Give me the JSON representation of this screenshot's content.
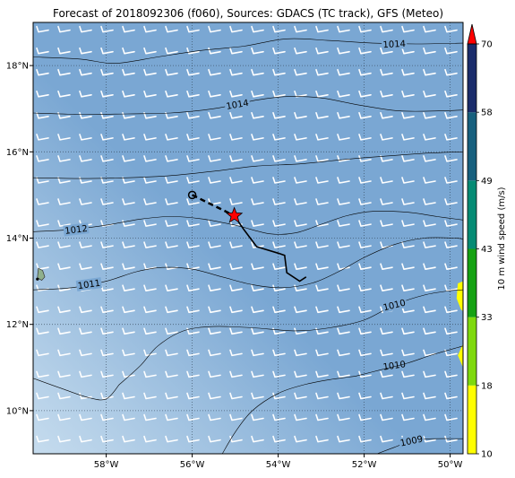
{
  "title": "Forecast of 2018092306 (f060), Sources: GDACS (TC track), GFS (Meteo)",
  "map": {
    "lat_ticks": [
      {
        "value": 18,
        "label": "18°N"
      },
      {
        "value": 16,
        "label": "16°N"
      },
      {
        "value": 14,
        "label": "14°N"
      },
      {
        "value": 12,
        "label": "12°N"
      },
      {
        "value": 10,
        "label": "10°N"
      }
    ],
    "lon_ticks": [
      {
        "value": -58,
        "label": "58°W"
      },
      {
        "value": -56,
        "label": "56°W"
      },
      {
        "value": -54,
        "label": "54°W"
      },
      {
        "value": -52,
        "label": "52°W"
      },
      {
        "value": -50,
        "label": "50°W"
      }
    ],
    "lon_range": [
      -59.7,
      -49.7
    ],
    "lat_range": [
      9.0,
      19.0
    ],
    "ocean_color": "#7aa7d3",
    "ocean_light_color": "#c6dcee",
    "grid": true,
    "isobars": [
      {
        "label": "1014",
        "label_lon": -51.3,
        "label_lat": 18.5,
        "label_angle": -3,
        "points": [
          [
            -59.7,
            18.2
          ],
          [
            -58.6,
            18.15
          ],
          [
            -57.8,
            18.05
          ],
          [
            -56.8,
            18.2
          ],
          [
            -55.8,
            18.35
          ],
          [
            -54.8,
            18.45
          ],
          [
            -53.8,
            18.62
          ],
          [
            -52.8,
            18.58
          ],
          [
            -51.8,
            18.52
          ],
          [
            -50.8,
            18.5
          ],
          [
            -49.7,
            18.52
          ]
        ]
      },
      {
        "label": "1014",
        "label_lon": -54.95,
        "label_lat": 17.1,
        "label_angle": -10,
        "points": [
          [
            -59.7,
            16.9
          ],
          [
            -58.6,
            16.87
          ],
          [
            -57.5,
            16.88
          ],
          [
            -56.5,
            16.9
          ],
          [
            -55.5,
            17.0
          ],
          [
            -54.5,
            17.2
          ],
          [
            -53.8,
            17.28
          ],
          [
            -53.0,
            17.25
          ],
          [
            -52.2,
            17.1
          ],
          [
            -51.2,
            16.95
          ],
          [
            -50.2,
            16.95
          ],
          [
            -49.7,
            16.97
          ]
        ]
      },
      {
        "label": "",
        "label_lon": 0,
        "label_lat": 0,
        "label_angle": 0,
        "points": [
          [
            -59.7,
            15.4
          ],
          [
            -58.6,
            15.38
          ],
          [
            -57.5,
            15.4
          ],
          [
            -56.5,
            15.45
          ],
          [
            -55.5,
            15.55
          ],
          [
            -54.5,
            15.67
          ],
          [
            -53.5,
            15.72
          ],
          [
            -52.5,
            15.82
          ],
          [
            -51.5,
            15.9
          ],
          [
            -50.5,
            15.97
          ],
          [
            -49.7,
            16.0
          ]
        ]
      },
      {
        "label": "1012",
        "label_lon": -58.7,
        "label_lat": 14.2,
        "label_angle": -7,
        "points": [
          [
            -59.7,
            14.15
          ],
          [
            -58.8,
            14.2
          ],
          [
            -58.0,
            14.3
          ],
          [
            -57.2,
            14.44
          ],
          [
            -56.5,
            14.5
          ],
          [
            -55.8,
            14.45
          ],
          [
            -55.0,
            14.3
          ],
          [
            -54.2,
            14.1
          ],
          [
            -53.6,
            14.12
          ],
          [
            -53.0,
            14.32
          ],
          [
            -52.4,
            14.52
          ],
          [
            -51.8,
            14.62
          ],
          [
            -51.0,
            14.6
          ],
          [
            -50.3,
            14.5
          ],
          [
            -49.7,
            14.42
          ]
        ]
      },
      {
        "label": "1011",
        "label_lon": -58.4,
        "label_lat": 12.93,
        "label_angle": -8,
        "points": [
          [
            -59.7,
            12.8
          ],
          [
            -58.8,
            12.85
          ],
          [
            -58.0,
            13.0
          ],
          [
            -57.3,
            13.22
          ],
          [
            -56.7,
            13.32
          ],
          [
            -56.0,
            13.28
          ],
          [
            -55.3,
            13.1
          ],
          [
            -54.6,
            12.92
          ],
          [
            -53.9,
            12.85
          ],
          [
            -53.2,
            12.96
          ],
          [
            -52.6,
            13.22
          ],
          [
            -52.0,
            13.55
          ],
          [
            -51.3,
            13.85
          ],
          [
            -50.6,
            14.0
          ],
          [
            -49.9,
            14.0
          ],
          [
            -49.7,
            13.98
          ]
        ]
      },
      {
        "label": "1010",
        "label_lon": -51.3,
        "label_lat": 12.45,
        "label_angle": -14,
        "points": [
          [
            -57.7,
            10.6
          ],
          [
            -57.2,
            11.05
          ],
          [
            -56.8,
            11.5
          ],
          [
            -56.2,
            11.85
          ],
          [
            -55.5,
            11.95
          ],
          [
            -54.6,
            11.92
          ],
          [
            -53.6,
            11.85
          ],
          [
            -52.8,
            11.92
          ],
          [
            -52.0,
            12.1
          ],
          [
            -51.3,
            12.45
          ],
          [
            -50.6,
            12.68
          ],
          [
            -50.0,
            12.78
          ],
          [
            -49.7,
            12.8
          ]
        ]
      },
      {
        "label": "1010",
        "label_lon": -51.3,
        "label_lat": 11.05,
        "label_angle": -8,
        "points": [
          [
            -59.7,
            10.75
          ],
          [
            -59.0,
            10.5
          ],
          [
            -58.4,
            10.3
          ],
          [
            -58.0,
            10.27
          ],
          [
            -57.7,
            10.6
          ]
        ]
      },
      {
        "label": "",
        "label_lon": 0,
        "label_lat": 0,
        "label_angle": 0,
        "points": [
          [
            -52.2,
            10.8
          ],
          [
            -51.6,
            10.95
          ],
          [
            -51.0,
            11.1
          ],
          [
            -50.4,
            11.3
          ],
          [
            -49.7,
            11.5
          ]
        ]
      },
      {
        "label": "",
        "label_lon": 0,
        "label_lat": 0,
        "label_angle": 0,
        "points": [
          [
            -55.3,
            9.0
          ],
          [
            -55.0,
            9.5
          ],
          [
            -54.6,
            10.0
          ],
          [
            -54.0,
            10.4
          ],
          [
            -53.4,
            10.6
          ],
          [
            -52.8,
            10.72
          ],
          [
            -52.2,
            10.8
          ]
        ]
      },
      {
        "label": "1009",
        "label_lon": -50.9,
        "label_lat": 9.3,
        "label_angle": -12,
        "points": [
          [
            -51.7,
            9.0
          ],
          [
            -51.3,
            9.15
          ],
          [
            -50.9,
            9.3
          ],
          [
            -50.4,
            9.35
          ],
          [
            -49.7,
            9.35
          ]
        ]
      }
    ],
    "track_past": [
      [
        -55.02,
        14.52
      ],
      [
        -54.8,
        14.2
      ],
      [
        -54.5,
        13.8
      ],
      [
        -54.0,
        13.65
      ],
      [
        -53.85,
        13.6
      ],
      [
        -53.8,
        13.2
      ],
      [
        -53.5,
        13.0
      ],
      [
        -53.35,
        13.1
      ]
    ],
    "track_forecast": [
      [
        -56.0,
        15.0
      ],
      [
        -55.02,
        14.52
      ]
    ],
    "storm_position": {
      "lon": -55.02,
      "lat": 14.52,
      "symbol": "star",
      "color": "#ff0000"
    },
    "forecast_marker": {
      "lon": -56.0,
      "lat": 15.0,
      "symbol": "circle"
    },
    "land": [
      {
        "name": "island",
        "color": "#8fb08c",
        "points": [
          [
            -59.58,
            13.3
          ],
          [
            -59.48,
            13.25
          ],
          [
            -59.43,
            13.1
          ],
          [
            -59.5,
            13.02
          ],
          [
            -59.6,
            13.08
          ]
        ]
      }
    ],
    "wind_swath": [
      {
        "color": "#ffff00",
        "points": [
          [
            -49.7,
            13.0
          ],
          [
            -49.82,
            12.95
          ],
          [
            -49.85,
            12.6
          ],
          [
            -49.75,
            12.35
          ],
          [
            -49.7,
            12.3
          ]
        ]
      },
      {
        "color": "#ffff00",
        "points": [
          [
            -49.7,
            11.55
          ],
          [
            -49.82,
            11.28
          ],
          [
            -49.7,
            11.0
          ]
        ]
      }
    ],
    "wind_barbs": {
      "lon_step": 0.5,
      "lat_step": 0.5,
      "color": "#ffffff"
    }
  },
  "colorbar": {
    "label": "10 m wind speed (m/s)",
    "ticks": [
      "10",
      "18",
      "33",
      "43",
      "49",
      "58",
      "70"
    ],
    "colors": [
      "#ffff00",
      "#7fd90d",
      "#16a213",
      "#058b74",
      "#17607e",
      "#1a2c6b"
    ],
    "extend_color": "#ff0000"
  }
}
